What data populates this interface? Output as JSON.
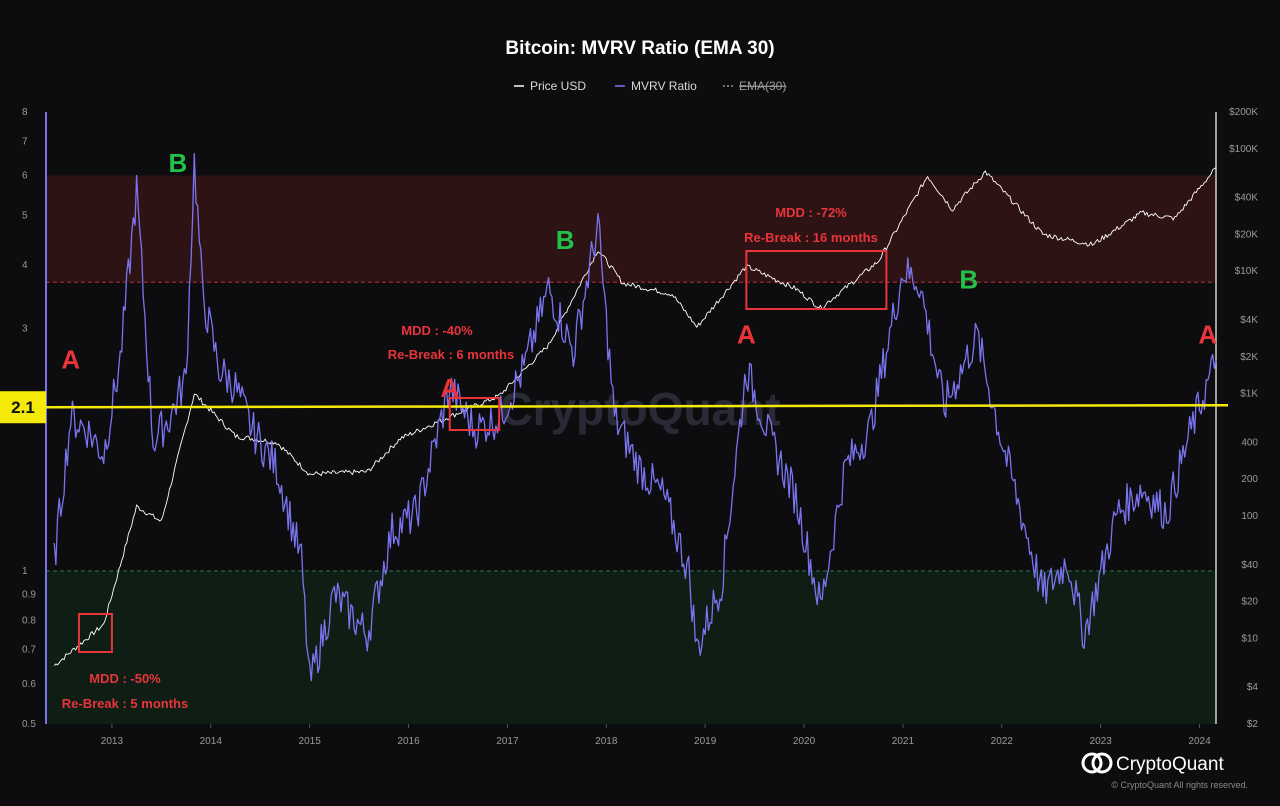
{
  "title": "Bitcoin: MVRV Ratio (EMA 30)",
  "legend": [
    {
      "label": "Price USD",
      "color": "#ffffff",
      "style": "solid"
    },
    {
      "label": "MVRV Ratio",
      "color": "#7b74f0",
      "style": "solid"
    },
    {
      "label": "EMA(30)",
      "color": "#9a9a9a",
      "style": "dashed",
      "disabled": true
    }
  ],
  "watermark": "CryptoQuant",
  "brand": {
    "name": "CryptoQuant",
    "copyright": "© CryptoQuant All rights reserved."
  },
  "colors": {
    "mvrv": "#7b74f0",
    "price": "#ffffff",
    "upper_zone": "#3a1518",
    "lower_zone": "#0f2418",
    "level_line": "#f5e90a",
    "annotation_red": "#e8343a",
    "annotation_green": "#22c24a"
  },
  "chart_data": {
    "type": "line",
    "x_range": [
      "2012-05",
      "2024-03"
    ],
    "x_ticks": [
      "2013",
      "2014",
      "2015",
      "2016",
      "2017",
      "2018",
      "2019",
      "2020",
      "2021",
      "2022",
      "2023",
      "2024"
    ],
    "y_left": {
      "scale": "log",
      "range": [
        0.5,
        8
      ],
      "ticks": [
        "0.5",
        "0.6",
        "0.7",
        "0.8",
        "0.9",
        "1",
        "3",
        "4",
        "5",
        "6",
        "7",
        "8"
      ]
    },
    "y_right": {
      "scale": "log",
      "range": [
        2,
        200000
      ],
      "ticks": [
        "$2",
        "$4",
        "$10",
        "$20",
        "$40",
        "100",
        "200",
        "400",
        "$1K",
        "$2K",
        "$4K",
        "$10K",
        "$20K",
        "$40K",
        "$100K",
        "$200K"
      ]
    },
    "zones": [
      {
        "from": 3.7,
        "to": 6.0,
        "color": "#3a1518",
        "line": "dashed"
      },
      {
        "from": 0.5,
        "to": 1.0,
        "color": "#0f2418",
        "line": "dashed"
      }
    ],
    "level_line": {
      "value": 2.1,
      "label": "2.1"
    },
    "series": [
      {
        "name": "MVRV Ratio",
        "axis": "left",
        "points": [
          [
            "2012-06",
            1.05
          ],
          [
            "2012-08",
            2.0
          ],
          [
            "2012-10",
            1.9
          ],
          [
            "2012-12",
            1.7
          ],
          [
            "2013-02",
            2.6
          ],
          [
            "2013-04",
            5.6
          ],
          [
            "2013-06",
            1.8
          ],
          [
            "2013-08",
            2.0
          ],
          [
            "2013-10",
            2.4
          ],
          [
            "2013-11",
            6.4
          ],
          [
            "2013-12",
            3.5
          ],
          [
            "2014-02",
            2.5
          ],
          [
            "2014-04",
            2.3
          ],
          [
            "2014-06",
            1.9
          ],
          [
            "2014-09",
            1.6
          ],
          [
            "2014-12",
            1.05
          ],
          [
            "2015-01",
            0.6
          ],
          [
            "2015-04",
            0.9
          ],
          [
            "2015-08",
            0.75
          ],
          [
            "2015-11",
            1.2
          ],
          [
            "2016-02",
            1.3
          ],
          [
            "2016-06",
            2.3
          ],
          [
            "2016-09",
            1.9
          ],
          [
            "2016-12",
            2.0
          ],
          [
            "2017-03",
            2.5
          ],
          [
            "2017-06",
            3.6
          ],
          [
            "2017-09",
            2.7
          ],
          [
            "2017-12",
            4.8
          ],
          [
            "2018-02",
            2.0
          ],
          [
            "2018-05",
            1.6
          ],
          [
            "2018-08",
            1.4
          ],
          [
            "2018-11",
            1.0
          ],
          [
            "2018-12",
            0.7
          ],
          [
            "2019-03",
            0.95
          ],
          [
            "2019-06",
            2.5
          ],
          [
            "2019-09",
            1.8
          ],
          [
            "2019-12",
            1.4
          ],
          [
            "2020-03",
            0.85
          ],
          [
            "2020-06",
            1.6
          ],
          [
            "2020-09",
            1.9
          ],
          [
            "2021-01",
            3.9
          ],
          [
            "2021-03",
            3.7
          ],
          [
            "2021-06",
            2.1
          ],
          [
            "2021-10",
            2.9
          ],
          [
            "2022-01",
            1.8
          ],
          [
            "2022-06",
            0.9
          ],
          [
            "2022-09",
            1.05
          ],
          [
            "2022-11",
            0.75
          ],
          [
            "2023-03",
            1.3
          ],
          [
            "2023-06",
            1.45
          ],
          [
            "2023-09",
            1.3
          ],
          [
            "2023-12",
            1.9
          ],
          [
            "2024-03",
            2.6
          ]
        ]
      },
      {
        "name": "Price USD",
        "axis": "right",
        "points": [
          [
            "2012-06",
            6
          ],
          [
            "2012-12",
            13
          ],
          [
            "2013-04",
            120
          ],
          [
            "2013-07",
            90
          ],
          [
            "2013-11",
            1000
          ],
          [
            "2014-04",
            450
          ],
          [
            "2014-09",
            400
          ],
          [
            "2015-01",
            220
          ],
          [
            "2015-08",
            230
          ],
          [
            "2015-12",
            430
          ],
          [
            "2016-06",
            650
          ],
          [
            "2016-12",
            960
          ],
          [
            "2017-06",
            2500
          ],
          [
            "2017-12",
            15000
          ],
          [
            "2018-03",
            8000
          ],
          [
            "2018-09",
            6500
          ],
          [
            "2018-12",
            3500
          ],
          [
            "2019-06",
            11000
          ],
          [
            "2019-12",
            7200
          ],
          [
            "2020-03",
            5000
          ],
          [
            "2020-10",
            12000
          ],
          [
            "2021-04",
            60000
          ],
          [
            "2021-07",
            32000
          ],
          [
            "2021-11",
            65000
          ],
          [
            "2022-06",
            20000
          ],
          [
            "2022-12",
            16500
          ],
          [
            "2023-06",
            30000
          ],
          [
            "2023-10",
            27000
          ],
          [
            "2024-03",
            70000
          ]
        ]
      }
    ],
    "annotations": [
      {
        "text": "A",
        "date": "2012-08",
        "value": 2.5,
        "color": "#e8343a"
      },
      {
        "text": "B",
        "date": "2013-09",
        "value": 6.1,
        "color": "#22c24a"
      },
      {
        "text": "A",
        "date": "2016-06",
        "value": 2.2,
        "color": "#e8343a"
      },
      {
        "text": "B",
        "date": "2017-08",
        "value": 4.3,
        "color": "#22c24a"
      },
      {
        "text": "A",
        "date": "2019-06",
        "value": 2.8,
        "color": "#e8343a"
      },
      {
        "text": "B",
        "date": "2021-09",
        "value": 3.6,
        "color": "#22c24a"
      },
      {
        "text": "A",
        "date": "2024-02",
        "value": 2.8,
        "color": "#e8343a"
      }
    ],
    "callouts": [
      {
        "mdd": "MDD : -50%",
        "rebreak": "Re-Break : 5 months",
        "box": {
          "from": "2012-09",
          "to": "2013-01"
        }
      },
      {
        "mdd": "MDD : -40%",
        "rebreak": "Re-Break : 6 months",
        "box": {
          "from": "2016-06",
          "to": "2016-12"
        }
      },
      {
        "mdd": "MDD : -72%",
        "rebreak": "Re-Break : 16 months",
        "box": {
          "from": "2019-06",
          "to": "2020-11"
        }
      }
    ]
  }
}
